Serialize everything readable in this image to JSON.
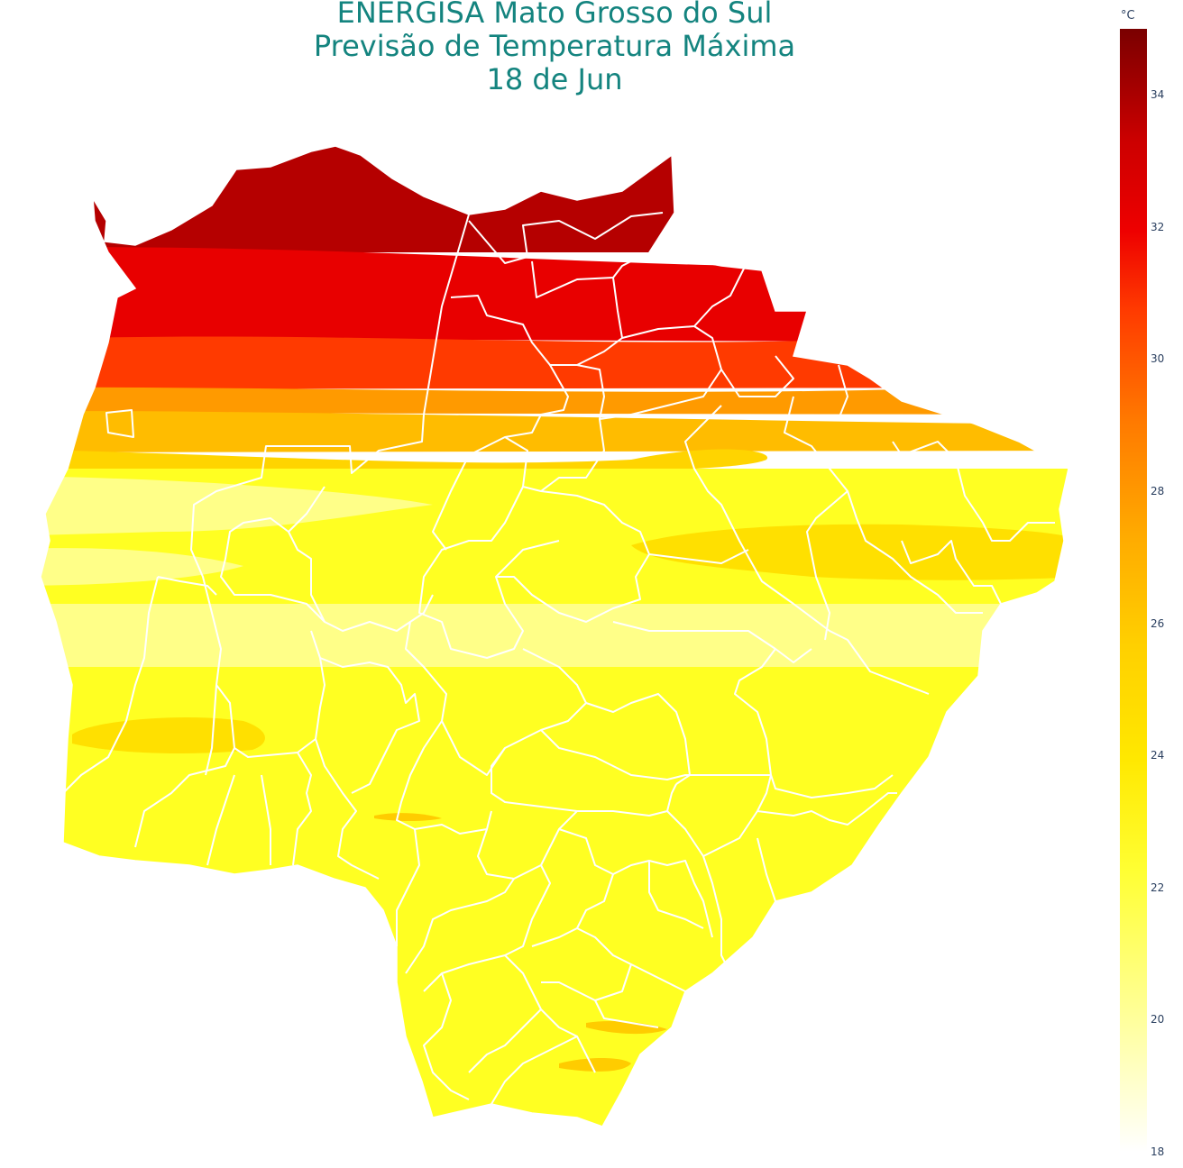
{
  "title": {
    "line1": "ENERGISA Mato Grosso do Sul",
    "line2": "Previsão de Temperatura Máxima",
    "line3": "18 de Jun"
  },
  "colorbar": {
    "unit": "°C",
    "min": 18,
    "max": 35,
    "ticks": [
      "34",
      "32",
      "30",
      "28",
      "26",
      "24",
      "22",
      "20",
      "18"
    ],
    "colorscale": [
      [
        0.0,
        "#ffffff"
      ],
      [
        0.12,
        "#ffff9a"
      ],
      [
        0.25,
        "#ffff33"
      ],
      [
        0.35,
        "#ffe800"
      ],
      [
        0.45,
        "#ffd000"
      ],
      [
        0.55,
        "#ffaa00"
      ],
      [
        0.65,
        "#ff7a00"
      ],
      [
        0.75,
        "#ff3a00"
      ],
      [
        0.82,
        "#ee0000"
      ],
      [
        0.9,
        "#cc0000"
      ],
      [
        1.0,
        "#7a0000"
      ]
    ]
  },
  "temperature_bands": [
    {
      "label": "34",
      "color": "#b50000"
    },
    {
      "label": "32",
      "color": "#e80000"
    },
    {
      "label": "30",
      "color": "#ff3a00"
    },
    {
      "label": "27",
      "color": "#ff9a00"
    },
    {
      "label": "25",
      "color": "#ffd400"
    },
    {
      "label": "23",
      "color": "#ffff22"
    },
    {
      "label": "21",
      "color": "#ffff88"
    },
    {
      "label": "24",
      "color": "#ffe400"
    }
  ]
}
